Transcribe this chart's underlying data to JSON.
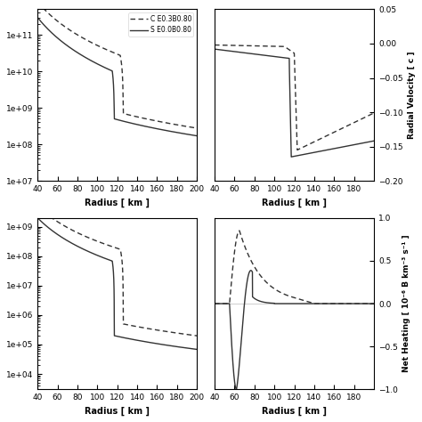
{
  "legend_labels": [
    "C E0.3B0.80",
    "S E0.0B0.80"
  ],
  "x_label": "Radius [ km ]",
  "x_min": 40,
  "x_max": 200,
  "panel_bg": "#ffffff",
  "line_color": "#333333",
  "top_right": {
    "ylabel": "Radial Velocity [ c ]",
    "ylim": [
      -0.2,
      0.05
    ]
  },
  "bot_right": {
    "ylabel": "Net Heating [ 10⁻⁶ B km⁻³ s⁻¹ ]",
    "ylim": [
      -1.0,
      1.0
    ]
  }
}
